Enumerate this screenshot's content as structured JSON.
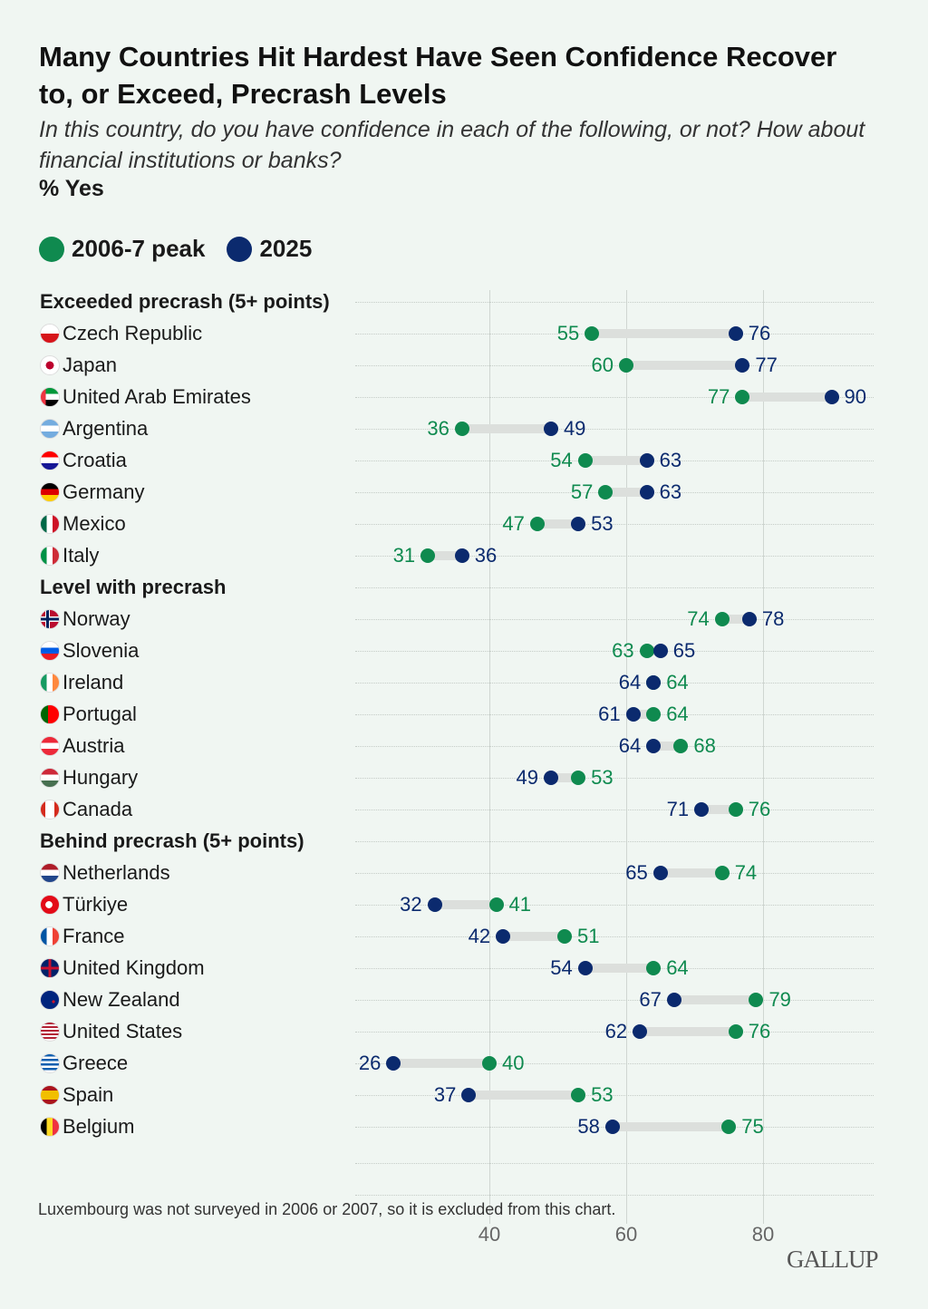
{
  "title": "Many Countries Hit Hardest Have Seen Confidence Recover to, or Exceed, Precrash Levels",
  "subtitle": "In this country, do you have confidence in each of the following, or not? How about financial institutions or banks?",
  "unit": "% Yes",
  "colors": {
    "peak": "#0f8a4f",
    "y2025": "#0b2a6e",
    "bar": "#dcdfdc",
    "grid": "#cfd6d1"
  },
  "chart_data": {
    "type": "dumbbell",
    "legend": [
      {
        "name": "2006-7 peak"
      },
      {
        "name": "2025"
      }
    ],
    "legend_placement": "top-left",
    "xlim": [
      20,
      96
    ],
    "xticks": [
      "40",
      "60",
      "80"
    ],
    "grid": true,
    "groups": [
      {
        "label": "Exceeded precrash (5+ points)",
        "rows": [
          {
            "country": "Czech Republic",
            "flag": "cz",
            "peak": 55,
            "y2025": 76
          },
          {
            "country": "Japan",
            "flag": "jp",
            "peak": 60,
            "y2025": 77
          },
          {
            "country": "United Arab Emirates",
            "flag": "ae",
            "peak": 77,
            "y2025": 90
          },
          {
            "country": "Argentina",
            "flag": "ar",
            "peak": 36,
            "y2025": 49
          },
          {
            "country": "Croatia",
            "flag": "hr",
            "peak": 54,
            "y2025": 63
          },
          {
            "country": "Germany",
            "flag": "de",
            "peak": 57,
            "y2025": 63
          },
          {
            "country": "Mexico",
            "flag": "mx",
            "peak": 47,
            "y2025": 53
          },
          {
            "country": "Italy",
            "flag": "it",
            "peak": 31,
            "y2025": 36
          }
        ]
      },
      {
        "label": "Level with precrash",
        "rows": [
          {
            "country": "Norway",
            "flag": "no",
            "peak": 74,
            "y2025": 78
          },
          {
            "country": "Slovenia",
            "flag": "si",
            "peak": 63,
            "y2025": 65
          },
          {
            "country": "Ireland",
            "flag": "ie",
            "peak": 64,
            "y2025": 64
          },
          {
            "country": "Portugal",
            "flag": "pt",
            "peak": 64,
            "y2025": 61
          },
          {
            "country": "Austria",
            "flag": "at",
            "peak": 68,
            "y2025": 64
          },
          {
            "country": "Hungary",
            "flag": "hu",
            "peak": 53,
            "y2025": 49
          },
          {
            "country": "Canada",
            "flag": "ca",
            "peak": 76,
            "y2025": 71
          }
        ]
      },
      {
        "label": "Behind precrash (5+ points)",
        "rows": [
          {
            "country": "Netherlands",
            "flag": "nl",
            "peak": 74,
            "y2025": 65
          },
          {
            "country": "Türkiye",
            "flag": "tr",
            "peak": 41,
            "y2025": 32
          },
          {
            "country": "France",
            "flag": "fr",
            "peak": 51,
            "y2025": 42
          },
          {
            "country": "United Kingdom",
            "flag": "gb",
            "peak": 64,
            "y2025": 54
          },
          {
            "country": "New Zealand",
            "flag": "nz",
            "peak": 79,
            "y2025": 67
          },
          {
            "country": "United States",
            "flag": "us",
            "peak": 76,
            "y2025": 62
          },
          {
            "country": "Greece",
            "flag": "gr",
            "peak": 40,
            "y2025": 26
          },
          {
            "country": "Spain",
            "flag": "es",
            "peak": 53,
            "y2025": 37
          },
          {
            "country": "Belgium",
            "flag": "be",
            "peak": 75,
            "y2025": 58
          }
        ]
      }
    ]
  },
  "note": "Luxembourg was not surveyed in 2006 or 2007, so it is excluded from this chart.",
  "logo": "GALLUP"
}
